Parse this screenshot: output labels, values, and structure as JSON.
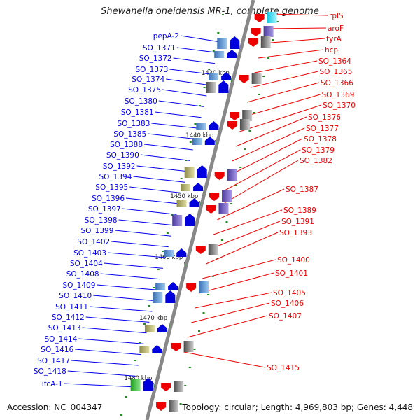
{
  "title": "Shewanella oneidensis MR-1, complete genome",
  "footer": {
    "accession_label": "Accession:",
    "accession": "NC_004347",
    "topology_label": "Topology:",
    "topology": "circular",
    "length_label": "Length:",
    "length": "4,969,803 bp",
    "genes_label": "Genes:",
    "genes": "4,448"
  },
  "colors": {
    "left_strand_label": "#0000ee",
    "right_strand_label": "#ee0000",
    "backbone": "#888888",
    "tick": "#228b22"
  },
  "scale_ticks": [
    "1430 kbp",
    "1440 kbp",
    "1450 kbp",
    "1460 kbp",
    "1470 kbp",
    "1480 kbp"
  ],
  "left_strand_genes": [
    "pepA-2",
    "SO_1371",
    "SO_1372",
    "SO_1373",
    "SO_1374",
    "SO_1375",
    "SO_1380",
    "SO_1381",
    "SO_1383",
    "SO_1385",
    "SO_1388",
    "SO_1390",
    "SO_1392",
    "SO_1394",
    "SO_1395",
    "SO_1396",
    "SO_1397",
    "SO_1398",
    "SO_1399",
    "SO_1402",
    "SO_1403",
    "SO_1404",
    "SO_1408",
    "SO_1409",
    "SO_1410",
    "SO_1411",
    "SO_1412",
    "SO_1413",
    "SO_1414",
    "SO_1416",
    "SO_1417",
    "SO_1418",
    "ifcA-1"
  ],
  "right_strand_genes": [
    "rplS",
    "aroF",
    "tyrA",
    "hcp",
    "SO_1364",
    "SO_1365",
    "SO_1366",
    "SO_1369",
    "SO_1370",
    "SO_1376",
    "SO_1377",
    "SO_1378",
    "SO_1379",
    "SO_1382",
    "SO_1387",
    "SO_1389",
    "SO_1391",
    "SO_1393",
    "SO_1400",
    "SO_1401",
    "SO_1405",
    "SO_1406",
    "SO_1407",
    "SO_1415"
  ]
}
